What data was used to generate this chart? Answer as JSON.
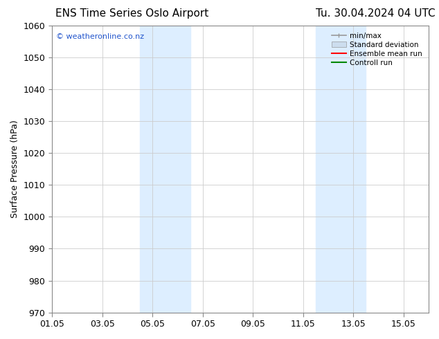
{
  "title_left": "ENS Time Series Oslo Airport",
  "title_right": "Tu. 30.04.2024 04 UTC",
  "ylabel": "Surface Pressure (hPa)",
  "ylim": [
    970,
    1060
  ],
  "yticks": [
    970,
    980,
    990,
    1000,
    1010,
    1020,
    1030,
    1040,
    1050,
    1060
  ],
  "xlim": [
    0,
    15
  ],
  "xtick_labels": [
    "01.05",
    "03.05",
    "05.05",
    "07.05",
    "09.05",
    "11.05",
    "13.05",
    "15.05"
  ],
  "xtick_positions": [
    0,
    2,
    4,
    6,
    8,
    10,
    12,
    14
  ],
  "shaded_bands": [
    {
      "xstart": 3.5,
      "xend": 5.5
    },
    {
      "xstart": 10.5,
      "xend": 12.5
    }
  ],
  "shaded_color": "#ddeeff",
  "watermark_text": "© weatheronline.co.nz",
  "watermark_color": "#2255cc",
  "legend_labels": [
    "min/max",
    "Standard deviation",
    "Ensemble mean run",
    "Controll run"
  ],
  "legend_colors": [
    "#999999",
    "#ccddee",
    "#ff0000",
    "#008800"
  ],
  "bg_color": "#ffffff",
  "grid_color": "#cccccc",
  "title_fontsize": 11,
  "tick_fontsize": 9,
  "ylabel_fontsize": 9
}
